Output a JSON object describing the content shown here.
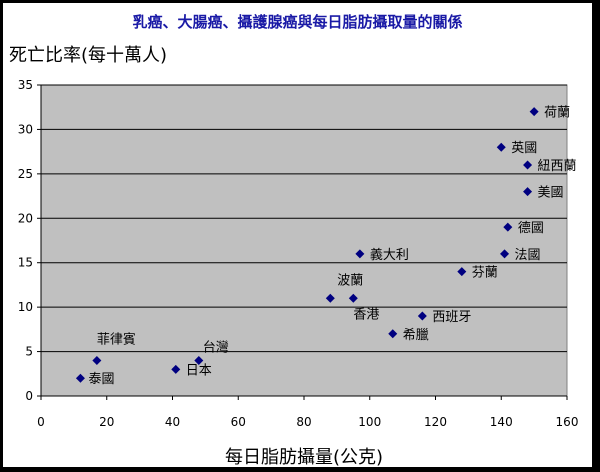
{
  "chart_data": {
    "type": "scatter",
    "title": "乳癌、大腸癌、攝護腺癌與每日脂肪攝取量的關係",
    "ylabel": "死亡比率(每十萬人)",
    "xlabel": "每日脂肪攝量(公克)",
    "xlim": [
      0,
      160
    ],
    "ylim": [
      0,
      35
    ],
    "xticks": [
      "0",
      "20",
      "40",
      "60",
      "80",
      "100",
      "120",
      "140",
      "160"
    ],
    "yticks": [
      "0",
      "5",
      "10",
      "15",
      "20",
      "25",
      "30",
      "35"
    ],
    "grid": true,
    "marker_color": "#000080",
    "plot_bg": "#c0c0c0",
    "points": [
      {
        "label": "荷蘭",
        "x": 150,
        "y": 32
      },
      {
        "label": "英國",
        "x": 140,
        "y": 28
      },
      {
        "label": "紐西蘭",
        "x": 148,
        "y": 26
      },
      {
        "label": "美國",
        "x": 148,
        "y": 23
      },
      {
        "label": "德國",
        "x": 142,
        "y": 19
      },
      {
        "label": "法國",
        "x": 141,
        "y": 16
      },
      {
        "label": "芬蘭",
        "x": 128,
        "y": 14
      },
      {
        "label": "義大利",
        "x": 97,
        "y": 16
      },
      {
        "label": "波蘭",
        "x": 88,
        "y": 11
      },
      {
        "label": "香港",
        "x": 95,
        "y": 11
      },
      {
        "label": "西班牙",
        "x": 116,
        "y": 9
      },
      {
        "label": "希臘",
        "x": 107,
        "y": 7
      },
      {
        "label": "菲律賓",
        "x": 17,
        "y": 4
      },
      {
        "label": "台灣",
        "x": 48,
        "y": 4
      },
      {
        "label": "日本",
        "x": 41,
        "y": 3
      },
      {
        "label": "泰國",
        "x": 12,
        "y": 2
      }
    ]
  }
}
